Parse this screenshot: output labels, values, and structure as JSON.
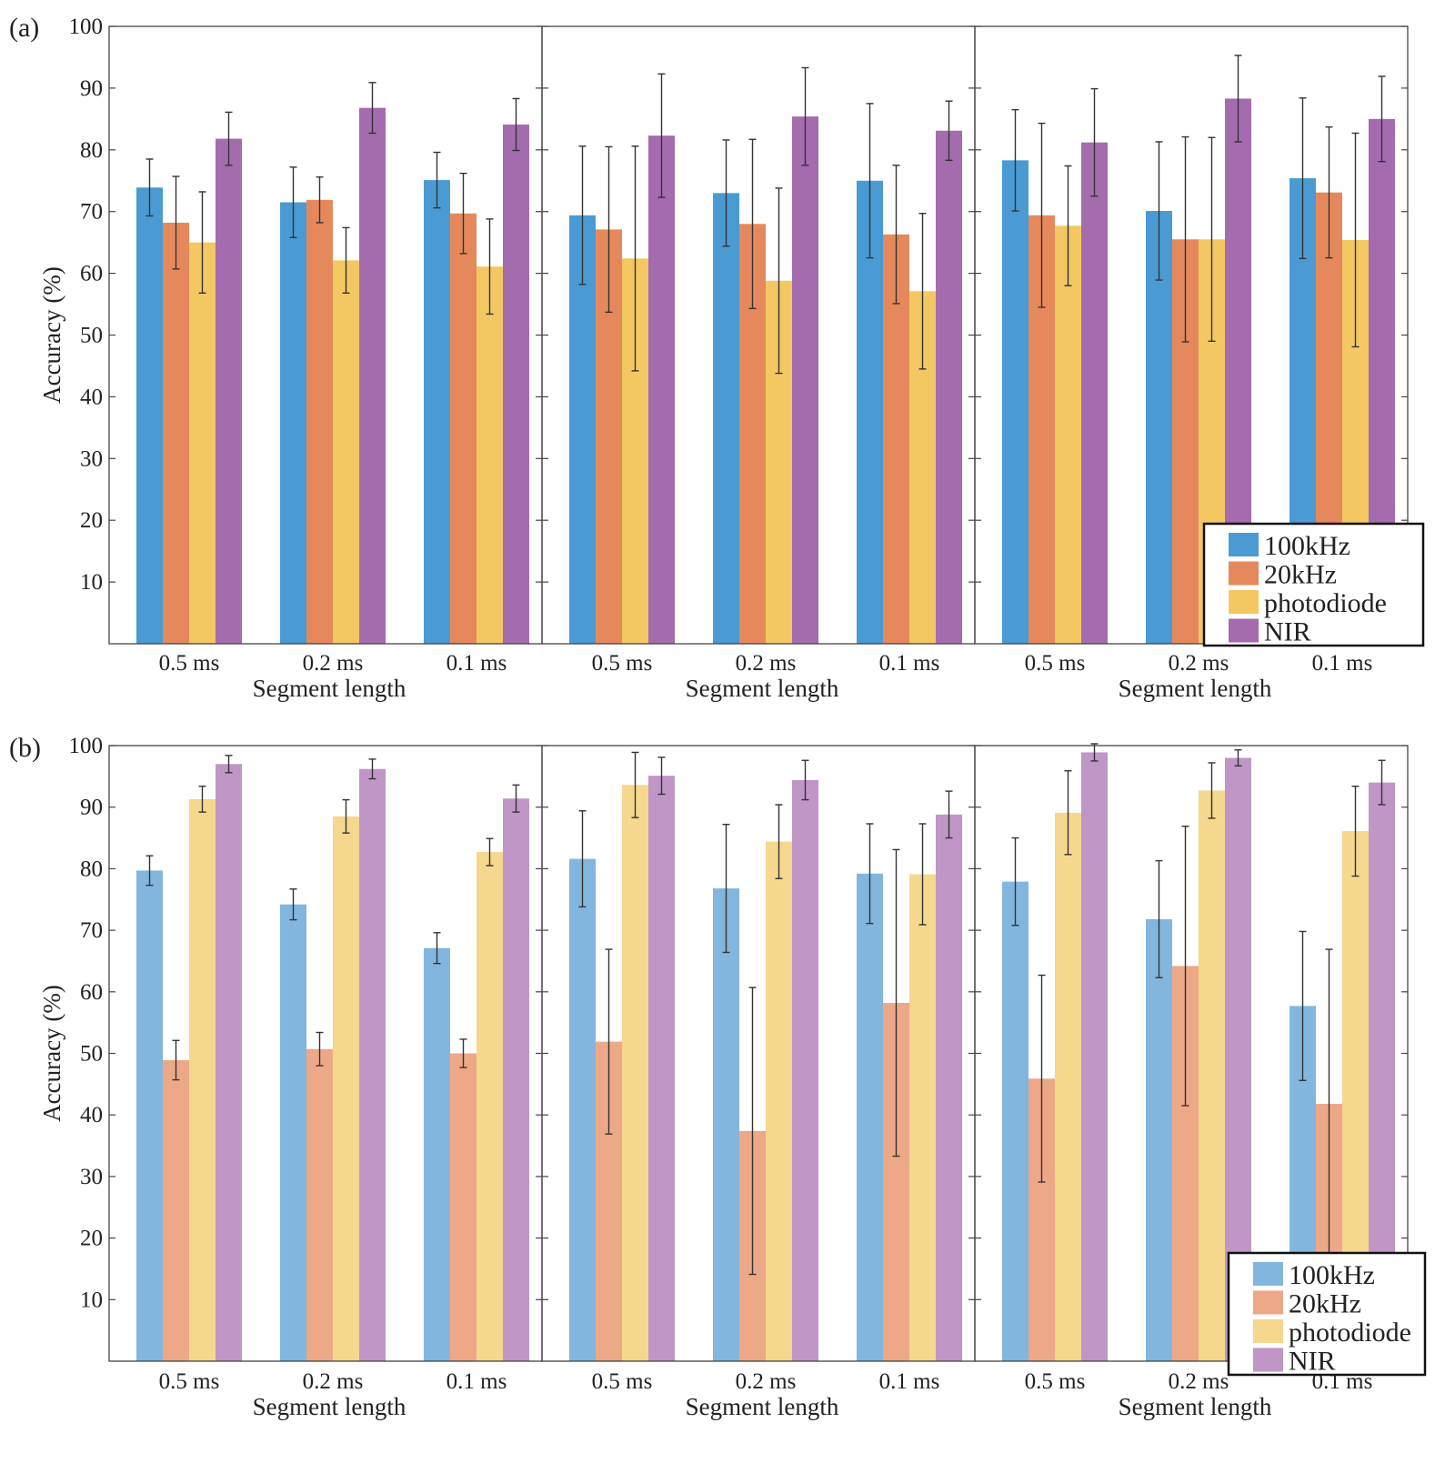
{
  "colors": {
    "a": {
      "100kHz": "#4a9bd4",
      "20kHz": "#e5895c",
      "photodiode": "#f3c862",
      "NIR": "#a46baf"
    },
    "b": {
      "100kHz": "#82b6de",
      "20kHz": "#eda888",
      "photodiode": "#f5d78e",
      "NIR": "#bf96c6"
    }
  },
  "chart_data": [
    {
      "type": "bar",
      "id": "a",
      "label": "(a)",
      "ylabel": "Accuracy (%)",
      "ylim": [
        0,
        100
      ],
      "yticks": [
        10,
        20,
        30,
        40,
        50,
        60,
        70,
        80,
        90,
        100
      ],
      "legend": {
        "position": "bottom-right of third subplot",
        "entries": [
          "100kHz",
          "20kHz",
          "photodiode",
          "NIR"
        ]
      },
      "subplots": [
        {
          "xlabel": "Segment length",
          "categories": [
            "0.5 ms",
            "0.2 ms",
            "0.1 ms"
          ],
          "series": [
            {
              "name": "100kHz",
              "values": [
                73.9,
                71.5,
                75.1
              ],
              "err": [
                4.6,
                5.7,
                4.5
              ]
            },
            {
              "name": "20kHz",
              "values": [
                68.2,
                71.9,
                69.7
              ],
              "err": [
                7.5,
                3.7,
                6.5
              ]
            },
            {
              "name": "photodiode",
              "values": [
                65.0,
                62.1,
                61.1
              ],
              "err": [
                8.2,
                5.3,
                7.7
              ]
            },
            {
              "name": "NIR",
              "values": [
                81.8,
                86.8,
                84.1
              ],
              "err": [
                4.3,
                4.1,
                4.2
              ]
            }
          ]
        },
        {
          "xlabel": "Segment length",
          "categories": [
            "0.5 ms",
            "0.2 ms",
            "0.1 ms"
          ],
          "series": [
            {
              "name": "100kHz",
              "values": [
                69.4,
                73.0,
                75.0
              ],
              "err": [
                11.2,
                8.6,
                12.5
              ]
            },
            {
              "name": "20kHz",
              "values": [
                67.1,
                68.0,
                66.3
              ],
              "err": [
                13.4,
                13.7,
                11.2
              ]
            },
            {
              "name": "photodiode",
              "values": [
                62.4,
                58.8,
                57.1
              ],
              "err": [
                18.2,
                15.0,
                12.6
              ]
            },
            {
              "name": "NIR",
              "values": [
                82.3,
                85.4,
                83.1
              ],
              "err": [
                10.0,
                7.9,
                4.8
              ]
            }
          ]
        },
        {
          "xlabel": "Segment length",
          "categories": [
            "0.5 ms",
            "0.2 ms",
            "0.1 ms"
          ],
          "series": [
            {
              "name": "100kHz",
              "values": [
                78.3,
                70.1,
                75.4
              ],
              "err": [
                8.2,
                11.2,
                13.0
              ]
            },
            {
              "name": "20kHz",
              "values": [
                69.4,
                65.5,
                73.1
              ],
              "err": [
                14.9,
                16.6,
                10.6
              ]
            },
            {
              "name": "photodiode",
              "values": [
                67.7,
                65.5,
                65.4
              ],
              "err": [
                9.7,
                16.5,
                17.3
              ]
            },
            {
              "name": "NIR",
              "values": [
                81.2,
                88.3,
                85.0
              ],
              "err": [
                8.7,
                7.0,
                6.9
              ]
            }
          ]
        }
      ]
    },
    {
      "type": "bar",
      "id": "b",
      "label": "(b)",
      "ylabel": "Accuracy (%)",
      "ylim": [
        0,
        100
      ],
      "yticks": [
        10,
        20,
        30,
        40,
        50,
        60,
        70,
        80,
        90,
        100
      ],
      "legend": {
        "position": "bottom-right of third subplot",
        "entries": [
          "100kHz",
          "20kHz",
          "photodiode",
          "NIR"
        ]
      },
      "subplots": [
        {
          "xlabel": "Segment length",
          "categories": [
            "0.5 ms",
            "0.2 ms",
            "0.1 ms"
          ],
          "series": [
            {
              "name": "100kHz",
              "values": [
                79.7,
                74.2,
                67.1
              ],
              "err": [
                2.4,
                2.5,
                2.5
              ]
            },
            {
              "name": "20kHz",
              "values": [
                48.9,
                50.7,
                50.0
              ],
              "err": [
                3.2,
                2.7,
                2.3
              ]
            },
            {
              "name": "photodiode",
              "values": [
                91.3,
                88.5,
                82.7
              ],
              "err": [
                2.1,
                2.7,
                2.2
              ]
            },
            {
              "name": "NIR",
              "values": [
                97.0,
                96.2,
                91.4
              ],
              "err": [
                1.4,
                1.6,
                2.2
              ]
            }
          ]
        },
        {
          "xlabel": "Segment length",
          "categories": [
            "0.5 ms",
            "0.2 ms",
            "0.1 ms"
          ],
          "series": [
            {
              "name": "100kHz",
              "values": [
                81.6,
                76.8,
                79.2
              ],
              "err": [
                7.8,
                10.4,
                8.1
              ]
            },
            {
              "name": "20kHz",
              "values": [
                51.9,
                37.4,
                58.2
              ],
              "err": [
                15.0,
                23.3,
                24.9
              ]
            },
            {
              "name": "photodiode",
              "values": [
                93.6,
                84.4,
                79.1
              ],
              "err": [
                5.3,
                6.0,
                8.2
              ]
            },
            {
              "name": "NIR",
              "values": [
                95.1,
                94.4,
                88.8
              ],
              "err": [
                3.0,
                3.2,
                3.8
              ]
            }
          ]
        },
        {
          "xlabel": "Segment length",
          "categories": [
            "0.5 ms",
            "0.2 ms",
            "0.1 ms"
          ],
          "series": [
            {
              "name": "100kHz",
              "values": [
                77.9,
                71.8,
                57.7
              ],
              "err": [
                7.1,
                9.5,
                12.1
              ]
            },
            {
              "name": "20kHz",
              "values": [
                45.9,
                64.2,
                41.8
              ],
              "err": [
                16.8,
                22.7,
                25.1
              ]
            },
            {
              "name": "photodiode",
              "values": [
                89.1,
                92.7,
                86.1
              ],
              "err": [
                6.8,
                4.5,
                7.3
              ]
            },
            {
              "name": "NIR",
              "values": [
                98.9,
                98.0,
                94.0
              ],
              "err": [
                1.4,
                1.3,
                3.6
              ]
            }
          ]
        }
      ]
    }
  ]
}
